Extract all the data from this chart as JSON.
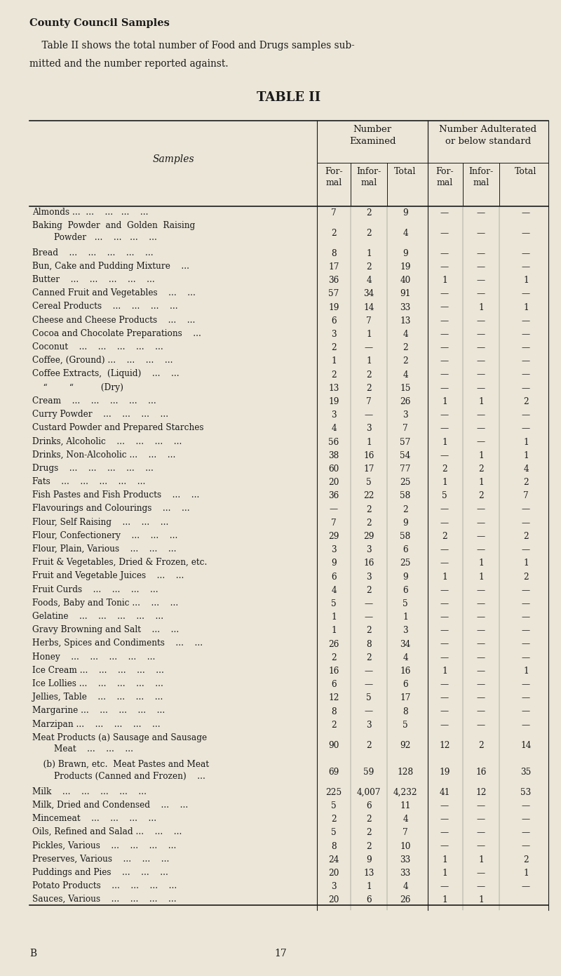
{
  "title_line1": "County Council Samples",
  "subtitle_l1": "    Table II shows the total number of Food and Drugs samples sub-",
  "subtitle_l2": "mitted and the number reported against.",
  "table_title": "TABLE II",
  "bg_color": "#EBE6D8",
  "text_color": "#1a1a1a",
  "col_sub_headers": [
    "For-\nmal",
    "Infor-\nmal",
    "Total",
    "For-\nmal",
    "Infor-\nmal",
    "Total"
  ],
  "row_header": "Samples",
  "rows": [
    [
      "Almonds ...  ...    ...   ...    ...",
      "7",
      "2",
      "9",
      "—",
      "—",
      "—"
    ],
    [
      "Baking  Powder  and  Golden  Raising\n        Powder   ...    ...   ...    ...",
      "2",
      "2",
      "4",
      "—",
      "—",
      "—"
    ],
    [
      "Bread    ...    ...    ...    ...    ...",
      "8",
      "1",
      "9",
      "—",
      "—",
      "—"
    ],
    [
      "Bun, Cake and Pudding Mixture    ...",
      "17",
      "2",
      "19",
      "—",
      "—",
      "—"
    ],
    [
      "Butter    ...    ...    ...    ...    ...",
      "36",
      "4",
      "40",
      "1",
      "—",
      "1"
    ],
    [
      "Canned Fruit and Vegetables    ...    ...",
      "57",
      "34",
      "91",
      "—",
      "—",
      "—"
    ],
    [
      "Cereal Products    ...    ...    ...    ...",
      "19",
      "14",
      "33",
      "—",
      "1",
      "1"
    ],
    [
      "Cheese and Cheese Products    ...    ...",
      "6",
      "7",
      "13",
      "—",
      "—",
      "—"
    ],
    [
      "Cocoa and Chocolate Preparations    ...",
      "3",
      "1",
      "4",
      "—",
      "—",
      "—"
    ],
    [
      "Coconut    ...    ...    ...    ...    ...",
      "2",
      "—",
      "2",
      "—",
      "—",
      "—"
    ],
    [
      "Coffee, (Ground) ...    ...    ...    ...",
      "1",
      "1",
      "2",
      "—",
      "—",
      "—"
    ],
    [
      "Coffee Extracts,  (Liquid)    ...    ...",
      "2",
      "2",
      "4",
      "—",
      "—",
      "—"
    ],
    [
      "    “        “          (Dry)",
      "13",
      "2",
      "15",
      "—",
      "—",
      "—"
    ],
    [
      "Cream    ...    ...    ...    ...    ...",
      "19",
      "7",
      "26",
      "1",
      "1",
      "2"
    ],
    [
      "Curry Powder    ...    ...    ...    ...",
      "3",
      "—",
      "3",
      "—",
      "—",
      "—"
    ],
    [
      "Custard Powder and Prepared Starches",
      "4",
      "3",
      "7",
      "—",
      "—",
      "—"
    ],
    [
      "Drinks, Alcoholic    ...    ...    ...    ...",
      "56",
      "1",
      "57",
      "1",
      "—",
      "1"
    ],
    [
      "Drinks, Non-Alcoholic ...    ...    ...",
      "38",
      "16",
      "54",
      "—",
      "1",
      "1"
    ],
    [
      "Drugs    ...    ...    ...    ...    ...",
      "60",
      "17",
      "77",
      "2",
      "2",
      "4"
    ],
    [
      "Fats    ...    ...    ...    ...    ...",
      "20",
      "5",
      "25",
      "1",
      "1",
      "2"
    ],
    [
      "Fish Pastes and Fish Products    ...    ...",
      "36",
      "22",
      "58",
      "5",
      "2",
      "7"
    ],
    [
      "Flavourings and Colourings    ...    ...",
      "—",
      "2",
      "2",
      "—",
      "—",
      "—"
    ],
    [
      "Flour, Self Raising    ...    ...    ...",
      "7",
      "2",
      "9",
      "—",
      "—",
      "—"
    ],
    [
      "Flour, Confectionery    ...    ...    ...",
      "29",
      "29",
      "58",
      "2",
      "—",
      "2"
    ],
    [
      "Flour, Plain, Various    ...    ...    ...",
      "3",
      "3",
      "6",
      "—",
      "—",
      "—"
    ],
    [
      "Fruit & Vegetables, Dried & Frozen, etc.",
      "9",
      "16",
      "25",
      "—",
      "1",
      "1"
    ],
    [
      "Fruit and Vegetable Juices    ...    ...",
      "6",
      "3",
      "9",
      "1",
      "1",
      "2"
    ],
    [
      "Fruit Curds    ...    ...    ...    ...",
      "4",
      "2",
      "6",
      "—",
      "—",
      "—"
    ],
    [
      "Foods, Baby and Tonic ...    ...    ...",
      "5",
      "—",
      "5",
      "—",
      "—",
      "—"
    ],
    [
      "Gelatine    ...    ...    ...    ...    ...",
      "1",
      "—",
      "1",
      "—",
      "—",
      "—"
    ],
    [
      "Gravy Browning and Salt    ...    ...",
      "1",
      "2",
      "3",
      "—",
      "—",
      "—"
    ],
    [
      "Herbs, Spices and Condiments    ...    ...",
      "26",
      "8",
      "34",
      "—",
      "—",
      "—"
    ],
    [
      "Honey    ...    ...    ...    ...    ...",
      "2",
      "2",
      "4",
      "—",
      "—",
      "—"
    ],
    [
      "Ice Cream ...    ...    ...    ...    ...",
      "16",
      "—",
      "16",
      "1",
      "—",
      "1"
    ],
    [
      "Ice Lollies ...    ...    ...    ...    ...",
      "6",
      "—",
      "6",
      "—",
      "—",
      "—"
    ],
    [
      "Jellies, Table    ...    ...    ...    ...",
      "12",
      "5",
      "17",
      "—",
      "—",
      "—"
    ],
    [
      "Margarine ...    ...    ...    ...    ...",
      "8",
      "—",
      "8",
      "—",
      "—",
      "—"
    ],
    [
      "Marzipan ...    ...    ...    ...    ...",
      "2",
      "3",
      "5",
      "—",
      "—",
      "—"
    ],
    [
      "Meat Products (a) Sausage and Sausage\n        Meat    ...    ...    ...",
      "90",
      "2",
      "92",
      "12",
      "2",
      "14"
    ],
    [
      "    (b) Brawn, etc.  Meat Pastes and Meat\n        Products (Canned and Frozen)    ...",
      "69",
      "59",
      "128",
      "19",
      "16",
      "35"
    ],
    [
      "Milk    ...    ...    ...    ...    ...",
      "225",
      "4,007",
      "4,232",
      "41",
      "12",
      "53"
    ],
    [
      "Milk, Dried and Condensed    ...    ...",
      "5",
      "6",
      "11",
      "—",
      "—",
      "—"
    ],
    [
      "Mincemeat    ...    ...    ...    ...",
      "2",
      "2",
      "4",
      "—",
      "—",
      "—"
    ],
    [
      "Oils, Refined and Salad ...    ...    ...",
      "5",
      "2",
      "7",
      "—",
      "—",
      "—"
    ],
    [
      "Pickles, Various    ...    ...    ...    ...",
      "8",
      "2",
      "10",
      "—",
      "—",
      "—"
    ],
    [
      "Preserves, Various    ...    ...    ...",
      "24",
      "9",
      "33",
      "1",
      "1",
      "2"
    ],
    [
      "Puddings and Pies    ...    ...    ...",
      "20",
      "13",
      "33",
      "1",
      "—",
      "1"
    ],
    [
      "Potato Products    ...    ...    ...    ...",
      "3",
      "1",
      "4",
      "—",
      "—",
      "—"
    ],
    [
      "Sauces, Various    ...    ...    ...    ...",
      "20",
      "6",
      "26",
      "1",
      "1",
      ""
    ]
  ],
  "footer_left": "B",
  "footer_center": "17"
}
